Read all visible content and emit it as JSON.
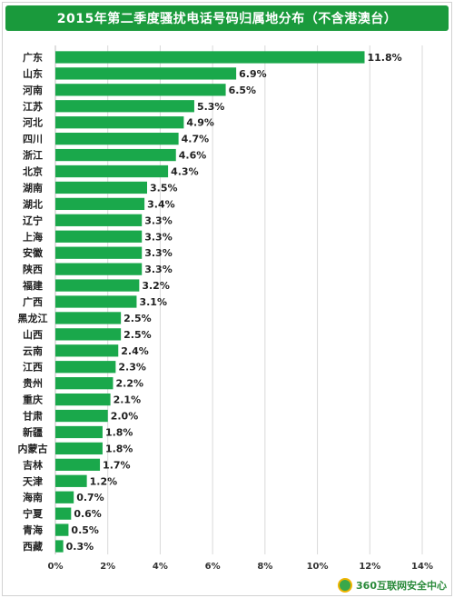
{
  "chart_data": {
    "type": "bar",
    "orientation": "horizontal",
    "title": "2015年第二季度骚扰电话号码归属地分布（不含港澳台）",
    "xlabel": "",
    "ylabel": "",
    "xlim": [
      0,
      14
    ],
    "xticks": [
      "0%",
      "2%",
      "4%",
      "6%",
      "8%",
      "10%",
      "12%",
      "14%"
    ],
    "grid": "vertical",
    "bar_color": "#1aa84b",
    "categories": [
      "广东",
      "山东",
      "河南",
      "江苏",
      "河北",
      "四川",
      "浙江",
      "北京",
      "湖南",
      "湖北",
      "辽宁",
      "上海",
      "安徽",
      "陕西",
      "福建",
      "广西",
      "黑龙江",
      "山西",
      "云南",
      "江西",
      "贵州",
      "重庆",
      "甘肃",
      "新疆",
      "内蒙古",
      "吉林",
      "天津",
      "海南",
      "宁夏",
      "青海",
      "西藏"
    ],
    "values": [
      11.8,
      6.9,
      6.5,
      5.3,
      4.9,
      4.7,
      4.6,
      4.3,
      3.5,
      3.4,
      3.3,
      3.3,
      3.3,
      3.3,
      3.2,
      3.1,
      2.5,
      2.5,
      2.4,
      2.3,
      2.2,
      2.1,
      2.0,
      1.8,
      1.8,
      1.7,
      1.2,
      0.7,
      0.6,
      0.5,
      0.3
    ],
    "value_labels": [
      "11.8%",
      "6.9%",
      "6.5%",
      "5.3%",
      "4.9%",
      "4.7%",
      "4.6%",
      "4.3%",
      "3.5%",
      "3.4%",
      "3.3%",
      "3.3%",
      "3.3%",
      "3.3%",
      "3.2%",
      "3.1%",
      "2.5%",
      "2.5%",
      "2.4%",
      "2.3%",
      "2.2%",
      "2.1%",
      "2.0%",
      "1.8%",
      "1.8%",
      "1.7%",
      "1.2%",
      "0.7%",
      "0.6%",
      "0.5%",
      "0.3%"
    ]
  },
  "footer": {
    "logo_text": "360互联网安全中心",
    "logo_icon": "360-logo-icon"
  },
  "colors": {
    "title_bg": "#1a9a3c",
    "bar": "#1aa84b"
  }
}
